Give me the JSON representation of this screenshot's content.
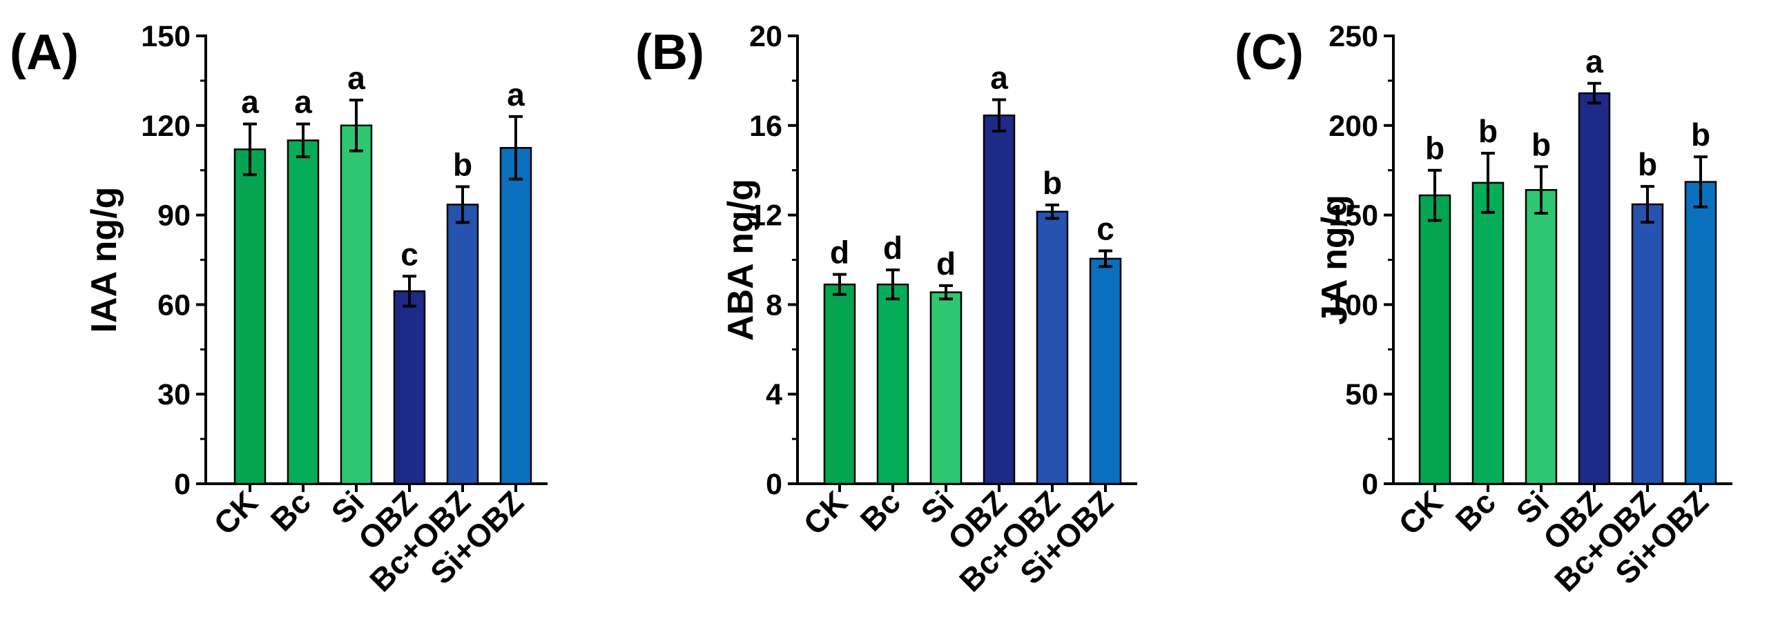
{
  "chart_data": [
    {
      "type": "bar",
      "panel_label": "(A)",
      "ylabel": "IAA ng/g",
      "ylim": [
        0,
        150
      ],
      "yticks": [
        0,
        30,
        60,
        90,
        120,
        150
      ],
      "categories": [
        "CK",
        "Bc",
        "Si",
        "OBZ",
        "Bc+OBZ",
        "Si+OBZ"
      ],
      "values": [
        112,
        115,
        120,
        64.5,
        93.5,
        112.5
      ],
      "errors": [
        8.5,
        5.5,
        8.5,
        5,
        6,
        10.5
      ],
      "significance": [
        "a",
        "a",
        "a",
        "c",
        "b",
        "a"
      ],
      "colors": [
        "#04a450",
        "#06ad58",
        "#2ec771",
        "#1d2a87",
        "#2652b0",
        "#0a6fbd"
      ]
    },
    {
      "type": "bar",
      "panel_label": "(B)",
      "ylabel": "ABA ng/g",
      "ylim": [
        0,
        20
      ],
      "yticks": [
        0,
        4,
        8,
        12,
        16,
        20
      ],
      "categories": [
        "CK",
        "Bc",
        "Si",
        "OBZ",
        "Bc+OBZ",
        "Si+OBZ"
      ],
      "values": [
        8.9,
        8.9,
        8.55,
        16.45,
        12.15,
        10.05
      ],
      "errors": [
        0.45,
        0.65,
        0.3,
        0.7,
        0.3,
        0.35
      ],
      "significance": [
        "d",
        "d",
        "d",
        "a",
        "b",
        "c"
      ],
      "colors": [
        "#04a450",
        "#06ad58",
        "#2ec771",
        "#1d2a87",
        "#2652b0",
        "#0a6fbd"
      ]
    },
    {
      "type": "bar",
      "panel_label": "(C)",
      "ylabel": "JA ng/g",
      "ylim": [
        0,
        250
      ],
      "yticks": [
        0,
        50,
        100,
        150,
        200,
        250
      ],
      "categories": [
        "CK",
        "Bc",
        "Si",
        "OBZ",
        "Bc+OBZ",
        "Si+OBZ"
      ],
      "values": [
        161,
        168,
        164,
        218,
        156,
        168.5
      ],
      "errors": [
        14,
        16.5,
        13,
        5.5,
        10,
        14
      ],
      "significance": [
        "b",
        "b",
        "b",
        "a",
        "b",
        "b"
      ],
      "colors": [
        "#04a450",
        "#06ad58",
        "#2ec771",
        "#1d2a87",
        "#2652b0",
        "#0a6fbd"
      ]
    }
  ]
}
